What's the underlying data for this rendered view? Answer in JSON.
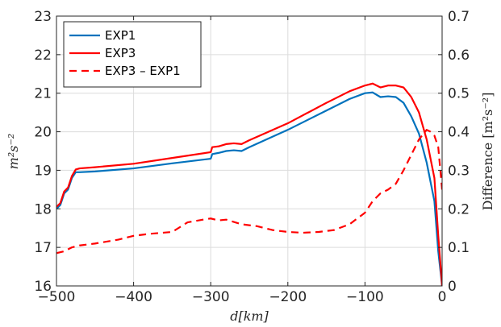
{
  "chart_data": {
    "type": "line",
    "xlabel": "d[km]",
    "ylabel_left": "m²s⁻²",
    "ylabel_right": "Difference [m²s⁻²]",
    "xlim": [
      -500,
      0
    ],
    "ylim_left": [
      16,
      23
    ],
    "ylim_right": [
      0,
      0.7
    ],
    "x_ticks": [
      -500,
      -400,
      -300,
      -200,
      -100,
      0
    ],
    "x_tick_labels": [
      "−500",
      "−400",
      "−300",
      "−200",
      "−100",
      "0"
    ],
    "y_left_ticks": [
      16,
      17,
      18,
      19,
      20,
      21,
      22,
      23
    ],
    "y_left_tick_labels": [
      "16",
      "17",
      "18",
      "19",
      "20",
      "21",
      "22",
      "23"
    ],
    "y_right_ticks": [
      0,
      0.1,
      0.2,
      0.3,
      0.4,
      0.5,
      0.6,
      0.7
    ],
    "y_right_tick_labels": [
      "0",
      "0.1",
      "0.2",
      "0.3",
      "0.4",
      "0.5",
      "0.6",
      "0.7"
    ],
    "grid": true,
    "legend_position": "top-left",
    "series": [
      {
        "name": "EXP1",
        "axis": "left",
        "color": "#0072BD",
        "style": "solid",
        "x": [
          -500,
          -495,
          -490,
          -485,
          -480,
          -475,
          -470,
          -450,
          -400,
          -350,
          -300,
          -298,
          -290,
          -280,
          -270,
          -260,
          -250,
          -200,
          -150,
          -120,
          -100,
          -90,
          -80,
          -70,
          -60,
          -50,
          -40,
          -30,
          -20,
          -10,
          -5,
          0
        ],
        "y": [
          18.0,
          18.1,
          18.4,
          18.5,
          18.8,
          18.95,
          18.95,
          18.97,
          19.05,
          19.18,
          19.3,
          19.42,
          19.45,
          19.5,
          19.52,
          19.5,
          19.6,
          20.05,
          20.55,
          20.85,
          21.0,
          21.02,
          20.9,
          20.92,
          20.9,
          20.75,
          20.4,
          19.95,
          19.2,
          18.2,
          16.9,
          16.0
        ]
      },
      {
        "name": "EXP3",
        "axis": "left",
        "color": "#FF0000",
        "style": "solid",
        "x": [
          -500,
          -495,
          -490,
          -485,
          -480,
          -475,
          -470,
          -450,
          -400,
          -350,
          -300,
          -298,
          -290,
          -280,
          -270,
          -260,
          -250,
          -200,
          -150,
          -120,
          -100,
          -90,
          -80,
          -70,
          -60,
          -50,
          -40,
          -30,
          -20,
          -10,
          -5,
          0
        ],
        "y": [
          18.05,
          18.15,
          18.45,
          18.55,
          18.85,
          19.02,
          19.05,
          19.08,
          19.17,
          19.32,
          19.47,
          19.6,
          19.62,
          19.68,
          19.7,
          19.68,
          19.78,
          20.22,
          20.75,
          21.05,
          21.2,
          21.25,
          21.15,
          21.2,
          21.2,
          21.15,
          20.9,
          20.5,
          19.8,
          18.8,
          17.3,
          16.0
        ]
      },
      {
        "name": "EXP3 – EXP1",
        "axis": "right",
        "color": "#FF0000",
        "style": "dashed",
        "x": [
          -500,
          -490,
          -480,
          -470,
          -450,
          -420,
          -400,
          -380,
          -350,
          -330,
          -310,
          -300,
          -290,
          -280,
          -260,
          -240,
          -220,
          -200,
          -180,
          -160,
          -140,
          -120,
          -100,
          -90,
          -80,
          -70,
          -60,
          -50,
          -40,
          -30,
          -20,
          -15,
          -10,
          -5,
          0
        ],
        "y": [
          0.085,
          0.09,
          0.1,
          0.105,
          0.11,
          0.12,
          0.13,
          0.135,
          0.14,
          0.165,
          0.172,
          0.175,
          0.17,
          0.172,
          0.16,
          0.155,
          0.145,
          0.14,
          0.138,
          0.14,
          0.145,
          0.16,
          0.19,
          0.22,
          0.24,
          0.25,
          0.265,
          0.3,
          0.34,
          0.38,
          0.405,
          0.4,
          0.39,
          0.36,
          0.25
        ]
      }
    ]
  }
}
